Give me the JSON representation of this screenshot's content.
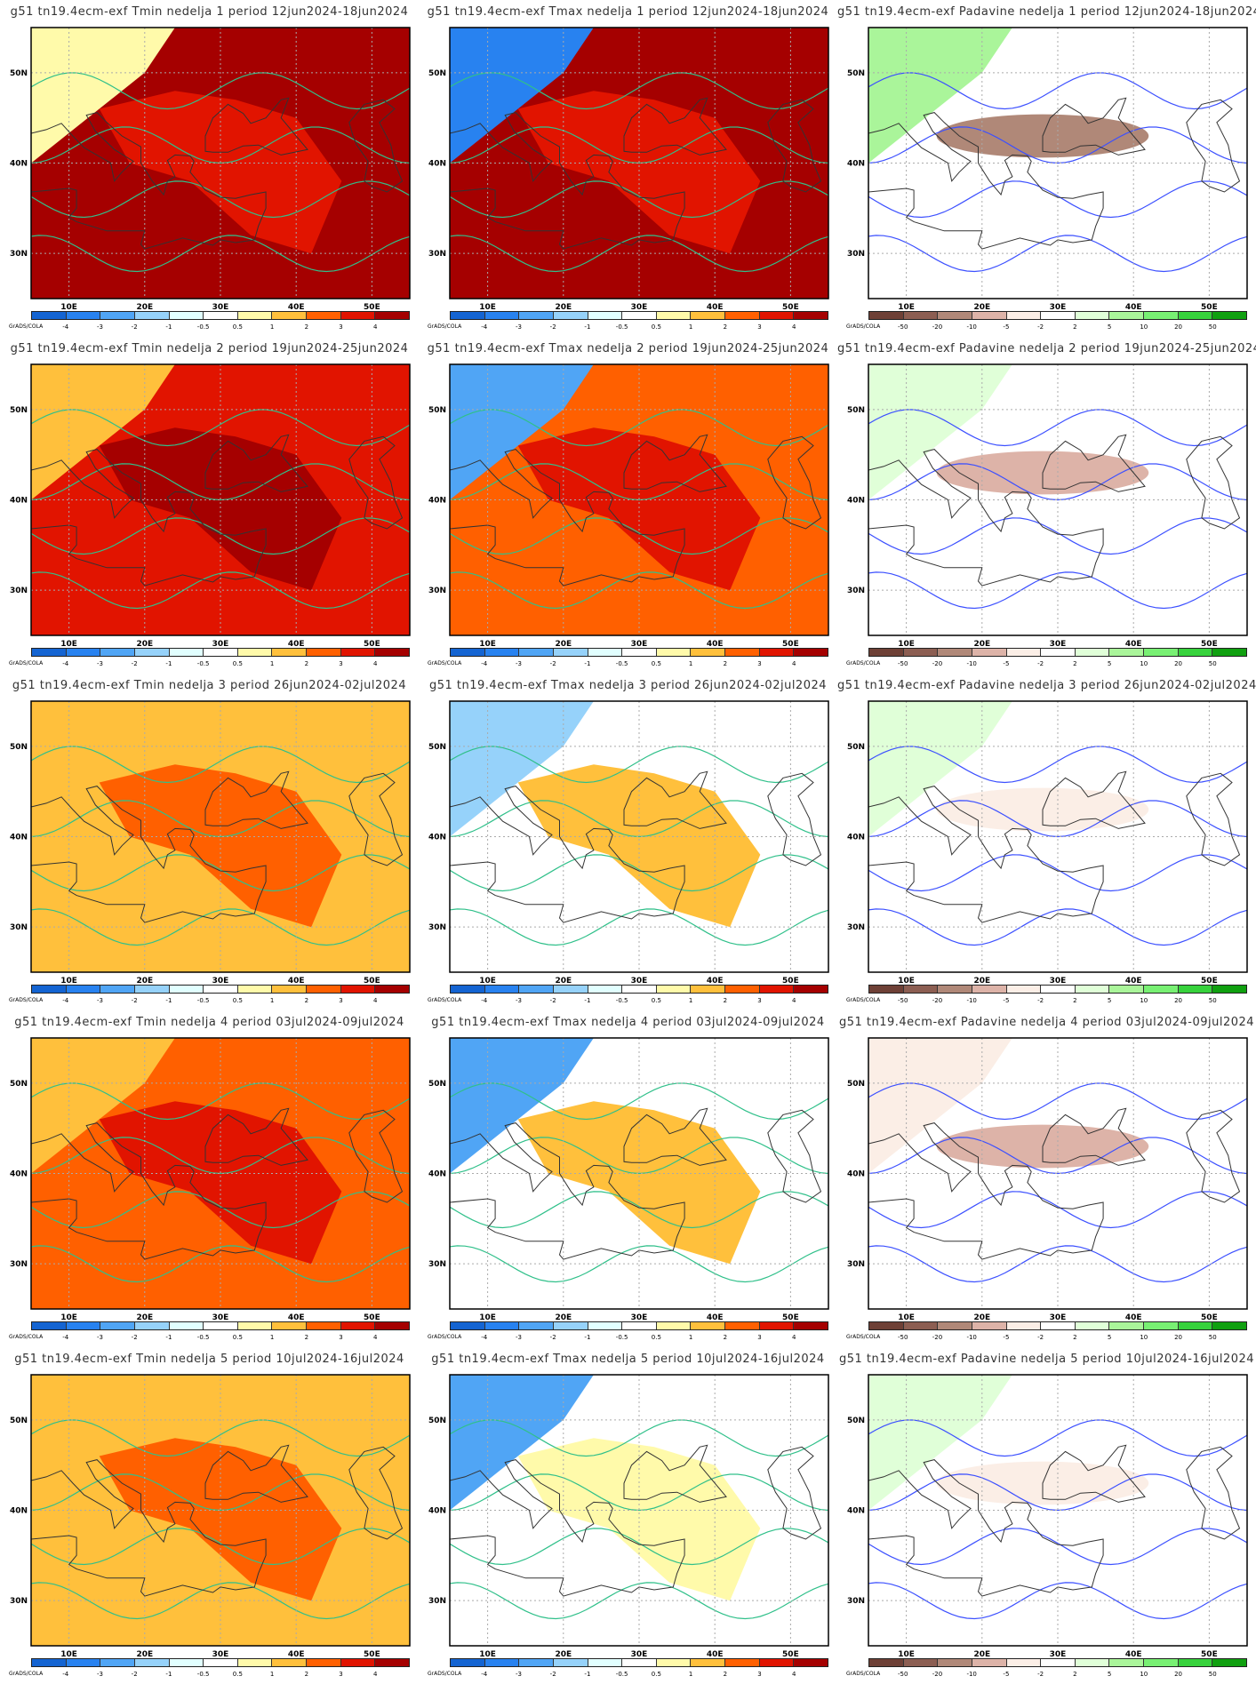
{
  "scales": {
    "temp": {
      "colors": [
        "#1464d2",
        "#2882f0",
        "#50a5f5",
        "#96d2fa",
        "#e1ffff",
        "#ffffff",
        "#fffaaa",
        "#ffc03c",
        "#ff6000",
        "#e11400",
        "#a50000"
      ],
      "labels": [
        "-4",
        "-3",
        "-2",
        "-1",
        "-0.5",
        "0.5",
        "1",
        "2",
        "3",
        "4"
      ],
      "contour": "#30c08a"
    },
    "precip": {
      "colors": [
        "#6e4036",
        "#8c5e52",
        "#b08878",
        "#ddb3a8",
        "#fbeee6",
        "#ffffff",
        "#e0ffd8",
        "#aaf59a",
        "#78f073",
        "#37d23c",
        "#10a010"
      ],
      "labels": [
        "-50",
        "-20",
        "-10",
        "-5",
        "-2",
        "2",
        "5",
        "10",
        "20",
        "50"
      ],
      "contour": "#3c50ff"
    }
  },
  "credit": "GrADS/COLA",
  "lon_ticks": [
    "10E",
    "20E",
    "30E",
    "40E",
    "50E"
  ],
  "lat_ticks": [
    "30N",
    "40N",
    "50N"
  ],
  "chart_data": {
    "type": "heatmap",
    "extent": {
      "lon": [
        5,
        55
      ],
      "lat": [
        25,
        55
      ]
    },
    "panels": [
      {
        "title": "g51 tn19.4ecm-exf Tmin nedelja 1 period 12jun2024-18jun2024",
        "scale": "temp",
        "main": "#a50000",
        "nw": "#fffaaa",
        "accent": "#e11400"
      },
      {
        "title": "g51 tn19.4ecm-exf Tmax nedelja 1 period 12jun2024-18jun2024",
        "scale": "temp",
        "main": "#a50000",
        "nw": "#2882f0",
        "accent": "#e11400"
      },
      {
        "title": "g51 tn19.4ecm-exf Padavine nedelja 1 period 12jun2024-18jun2024",
        "scale": "precip",
        "main": "#ffffff",
        "nw": "#aaf59a",
        "accent": "#b08878"
      },
      {
        "title": "g51 tn19.4ecm-exf Tmin nedelja 2 period 19jun2024-25jun2024",
        "scale": "temp",
        "main": "#e11400",
        "nw": "#ffc03c",
        "accent": "#a50000"
      },
      {
        "title": "g51 tn19.4ecm-exf Tmax nedelja 2 period 19jun2024-25jun2024",
        "scale": "temp",
        "main": "#ff6000",
        "nw": "#50a5f5",
        "accent": "#e11400"
      },
      {
        "title": "g51 tn19.4ecm-exf Padavine nedelja 2 period 19jun2024-25jun2024",
        "scale": "precip",
        "main": "#ffffff",
        "nw": "#e0ffd8",
        "accent": "#ddb3a8"
      },
      {
        "title": "g51 tn19.4ecm-exf Tmin nedelja 3 period 26jun2024-02jul2024",
        "scale": "temp",
        "main": "#ffc03c",
        "nw": "#ffc03c",
        "accent": "#ff6000"
      },
      {
        "title": "g51 tn19.4ecm-exf Tmax nedelja 3 period 26jun2024-02jul2024",
        "scale": "temp",
        "main": "#ffffff",
        "nw": "#96d2fa",
        "accent": "#ffc03c"
      },
      {
        "title": "g51 tn19.4ecm-exf Padavine nedelja 3 period 26jun2024-02jul2024",
        "scale": "precip",
        "main": "#ffffff",
        "nw": "#e0ffd8",
        "accent": "#fbeee6"
      },
      {
        "title": "g51 tn19.4ecm-exf Tmin nedelja 4 period 03jul2024-09jul2024",
        "scale": "temp",
        "main": "#ff6000",
        "nw": "#ffc03c",
        "accent": "#e11400"
      },
      {
        "title": "g51 tn19.4ecm-exf Tmax nedelja 4 period 03jul2024-09jul2024",
        "scale": "temp",
        "main": "#ffffff",
        "nw": "#50a5f5",
        "accent": "#ffc03c"
      },
      {
        "title": "g51 tn19.4ecm-exf Padavine nedelja 4 period 03jul2024-09jul2024",
        "scale": "precip",
        "main": "#ffffff",
        "nw": "#fbeee6",
        "accent": "#ddb3a8"
      },
      {
        "title": "g51 tn19.4ecm-exf Tmin nedelja 5 period 10jul2024-16jul2024",
        "scale": "temp",
        "main": "#ffc03c",
        "nw": "#ffc03c",
        "accent": "#ff6000"
      },
      {
        "title": "g51 tn19.4ecm-exf Tmax nedelja 5 period 10jul2024-16jul2024",
        "scale": "temp",
        "main": "#ffffff",
        "nw": "#50a5f5",
        "accent": "#fffaaa"
      },
      {
        "title": "g51 tn19.4ecm-exf Padavine nedelja 5 period 10jul2024-16jul2024",
        "scale": "precip",
        "main": "#ffffff",
        "nw": "#e0ffd8",
        "accent": "#fbeee6"
      }
    ]
  }
}
